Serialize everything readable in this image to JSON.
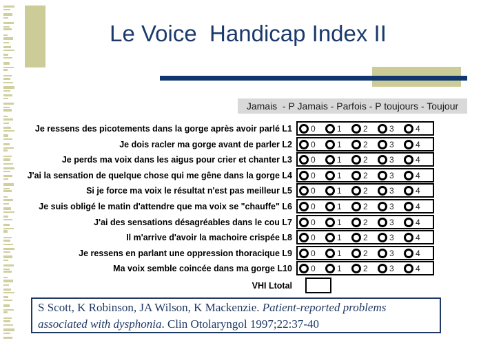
{
  "slide": {
    "title": "Le Voice  Handicap Index II"
  },
  "scale_header": "Jamais  - P Jamais - Parfois - P toujours - Toujour",
  "questions": [
    {
      "label": "Je ressens des picotements dans la gorge après avoir parlé L1"
    },
    {
      "label": "Je dois racler ma gorge avant de parler L2"
    },
    {
      "label": "Je perds ma voix dans les aigus pour crier et chanter L3"
    },
    {
      "label": "J'ai la sensation de quelque chose qui me gêne dans la gorge L4"
    },
    {
      "label": "Si je force ma voix le résultat n'est pas meilleur L5"
    },
    {
      "label": "Je suis obligé le matin d'attendre que ma voix se \"chauffe\" L6"
    },
    {
      "label": "J'ai des sensations désagréables dans le cou L7"
    },
    {
      "label": "Il m'arrive d'avoir la machoire crispée L8"
    },
    {
      "label": "Je ressens en parlant une oppression thoracique L9"
    },
    {
      "label": "Ma voix semble coincée dans ma gorge L10"
    }
  ],
  "options": [
    "0",
    "1",
    "2",
    "3",
    "4"
  ],
  "total": {
    "label": "VHI Ltotal",
    "value": ""
  },
  "citation": {
    "authors": "S Scott, K Robinson, JA Wilson, K Mackenzie. ",
    "title_italic": "Patient-reported problems associated with dysphonia",
    "rest": ". Clin Otolaryngol 1997;22:37-40"
  },
  "colors": {
    "navy": "#10386e",
    "khaki": "#cccc99",
    "header_bg": "#d9d9d9"
  }
}
